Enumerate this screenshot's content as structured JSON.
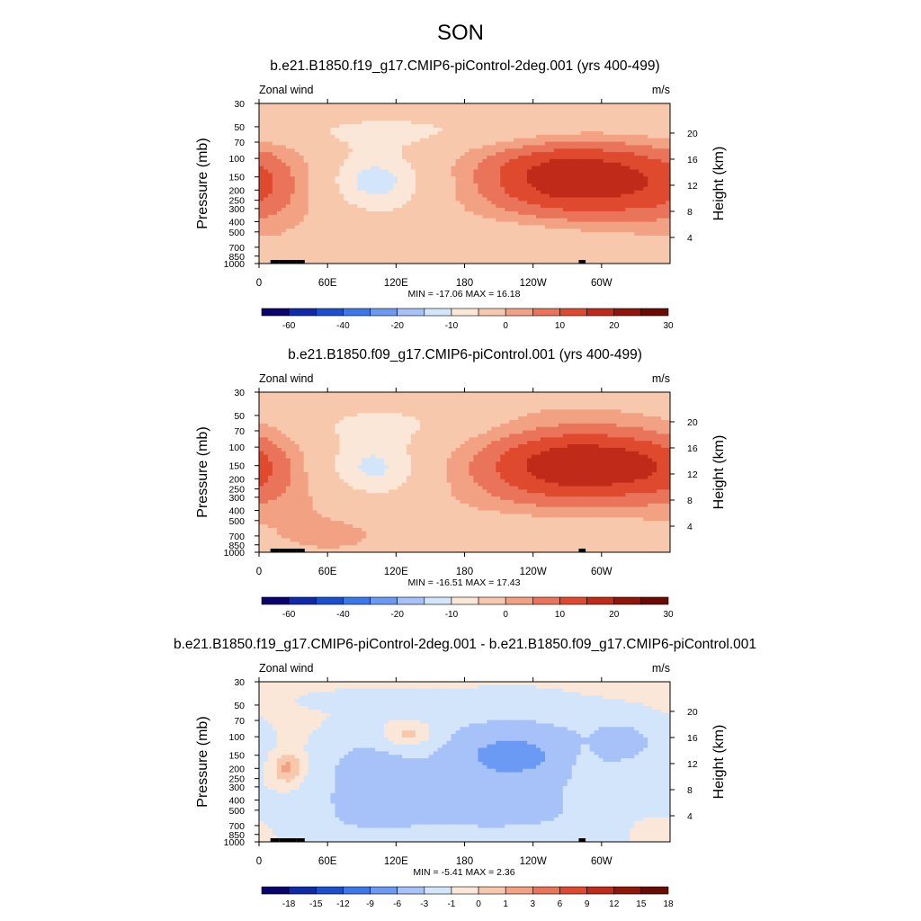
{
  "suptitle": "SON",
  "colors": {
    "cmap_wind": [
      "#08036f",
      "#0f2aa8",
      "#1c4fd0",
      "#3a78ec",
      "#6b9af5",
      "#a6c2f8",
      "#d3e5fb",
      "#fbe7d8",
      "#f8c8ad",
      "#f2a183",
      "#ea745a",
      "#df4a2f",
      "#c02a18",
      "#8f1608",
      "#6b0a02"
    ],
    "cmap_diff": [
      "#08036f",
      "#0f2aa8",
      "#1c4fd0",
      "#3a78ec",
      "#6b9af5",
      "#a6c2f8",
      "#d3e5fb",
      "#fbe7d8",
      "#f8c8ad",
      "#f2a183",
      "#ea745a",
      "#df4a2f",
      "#c02a18",
      "#8f1608",
      "#6b0a02"
    ]
  },
  "chart_data": [
    {
      "type": "contour",
      "title": "b.e21.B1850.f19_g17.CMIP6-piControl-2deg.001 (yrs 400-499)",
      "left_label": "Zonal wind",
      "right_label": "m/s",
      "ylabel": "Pressure (mb)",
      "ylabel_right": "Height (km)",
      "xticks": [
        "0",
        "60E",
        "120E",
        "180",
        "120W",
        "60W"
      ],
      "yticks": [
        "30",
        "50",
        "70",
        "100",
        "150",
        "200",
        "250",
        "300",
        "400",
        "500",
        "700",
        "850",
        "1000"
      ],
      "height_ticks": [
        "20",
        "16",
        "12",
        "8",
        "4"
      ],
      "stats": "MIN = -17.06  MAX =  16.18",
      "min": -17.06,
      "max": 16.18,
      "colorbar_labels": [
        "-60",
        "-40",
        "-20",
        "-10",
        "0",
        "10",
        "20",
        "30"
      ],
      "colorbar": "cmap_wind",
      "blobs": [
        {
          "lon": 100,
          "p": 165,
          "dlon": 38,
          "dlogp": 0.22,
          "amp": -14
        },
        {
          "lon": 155,
          "p": 55,
          "dlon": 150,
          "dlogp": 0.12,
          "amp": -7
        },
        {
          "lon": 15,
          "p": 180,
          "dlon": 38,
          "dlogp": 0.3,
          "amp": 7
        },
        {
          "lon": 70,
          "p": 700,
          "dlon": 40,
          "dlogp": 0.08,
          "amp": 5
        },
        {
          "lon": 285,
          "p": 150,
          "dlon": 60,
          "dlogp": 0.3,
          "amp": 16
        },
        {
          "lon": 230,
          "p": 150,
          "dlon": 60,
          "dlogp": 0.35,
          "amp": 8
        },
        {
          "lon": 200,
          "p": 650,
          "dlon": 100,
          "dlogp": 0.15,
          "amp": -6
        },
        {
          "lon": 335,
          "p": 250,
          "dlon": 60,
          "dlogp": 0.45,
          "amp": 4
        }
      ]
    },
    {
      "type": "contour",
      "title": "b.e21.B1850.f09_g17.CMIP6-piControl.001 (yrs 400-499)",
      "left_label": "Zonal wind",
      "right_label": "m/s",
      "ylabel": "Pressure (mb)",
      "ylabel_right": "Height (km)",
      "xticks": [
        "0",
        "60E",
        "120E",
        "180",
        "120W",
        "60W"
      ],
      "yticks": [
        "30",
        "50",
        "70",
        "100",
        "150",
        "200",
        "250",
        "300",
        "400",
        "500",
        "700",
        "850",
        "1000"
      ],
      "height_ticks": [
        "20",
        "16",
        "12",
        "8",
        "4"
      ],
      "stats": "MIN = -16.51  MAX =  17.43",
      "min": -16.51,
      "max": 17.43,
      "colorbar_labels": [
        "-60",
        "-40",
        "-20",
        "-10",
        "0",
        "10",
        "20",
        "30"
      ],
      "colorbar": "cmap_wind",
      "blobs": [
        {
          "lon": 100,
          "p": 160,
          "dlon": 38,
          "dlogp": 0.22,
          "amp": -14
        },
        {
          "lon": 125,
          "p": 60,
          "dlon": 70,
          "dlogp": 0.15,
          "amp": -7
        },
        {
          "lon": 0,
          "p": 150,
          "dlon": 35,
          "dlogp": 0.3,
          "amp": 8
        },
        {
          "lon": 80,
          "p": 700,
          "dlon": 40,
          "dlogp": 0.12,
          "amp": 6
        },
        {
          "lon": 290,
          "p": 150,
          "dlon": 55,
          "dlogp": 0.28,
          "amp": 17
        },
        {
          "lon": 225,
          "p": 150,
          "dlon": 70,
          "dlogp": 0.38,
          "amp": 10
        },
        {
          "lon": 200,
          "p": 700,
          "dlon": 90,
          "dlogp": 0.15,
          "amp": -5
        },
        {
          "lon": 45,
          "p": 400,
          "dlon": 40,
          "dlogp": 0.4,
          "amp": 4
        }
      ]
    },
    {
      "type": "contour",
      "title": "b.e21.B1850.f19_g17.CMIP6-piControl-2deg.001 - b.e21.B1850.f09_g17.CMIP6-piControl.001",
      "left_label": "Zonal wind",
      "right_label": "m/s",
      "ylabel": "Pressure (mb)",
      "ylabel_right": "Height (km)",
      "xticks": [
        "0",
        "60E",
        "120E",
        "180",
        "120W",
        "60W"
      ],
      "yticks": [
        "30",
        "50",
        "70",
        "100",
        "150",
        "200",
        "250",
        "300",
        "400",
        "500",
        "700",
        "850",
        "1000"
      ],
      "height_ticks": [
        "20",
        "16",
        "12",
        "8",
        "4"
      ],
      "stats": "MIN = -5.41  MAX =  2.36",
      "min": -5.41,
      "max": 2.36,
      "colorbar_labels": [
        "-18",
        "-15",
        "-12",
        "-9",
        "-6",
        "-3",
        "-1",
        "0",
        "1",
        "3",
        "6",
        "9",
        "12",
        "15",
        "18"
      ],
      "colorbar": "cmap_diff",
      "background": -0.6,
      "blobs": [
        {
          "lon": 220,
          "p": 150,
          "dlon": 40,
          "dlogp": 0.2,
          "amp": -4.4
        },
        {
          "lon": 220,
          "p": 170,
          "dlon": 75,
          "dlogp": 0.38,
          "amp": -2.2
        },
        {
          "lon": 95,
          "p": 250,
          "dlon": 28,
          "dlogp": 0.3,
          "amp": -3.5
        },
        {
          "lon": 190,
          "p": 600,
          "dlon": 120,
          "dlogp": 0.18,
          "amp": -2.0
        },
        {
          "lon": 130,
          "p": 100,
          "dlon": 20,
          "dlogp": 0.1,
          "amp": 2.5
        },
        {
          "lon": 25,
          "p": 200,
          "dlon": 9,
          "dlogp": 0.1,
          "amp": 2.2
        },
        {
          "lon": 285,
          "p": 200,
          "dlon": 8,
          "dlogp": 0.2,
          "amp": 1.8
        },
        {
          "lon": 100,
          "p": 45,
          "dlon": 40,
          "dlogp": 0.06,
          "amp": -1.5
        },
        {
          "lon": 320,
          "p": 110,
          "dlon": 25,
          "dlogp": 0.15,
          "amp": -2.5
        },
        {
          "lon": 340,
          "p": 700,
          "dlon": 18,
          "dlogp": 0.1,
          "amp": 1.0
        }
      ]
    }
  ]
}
